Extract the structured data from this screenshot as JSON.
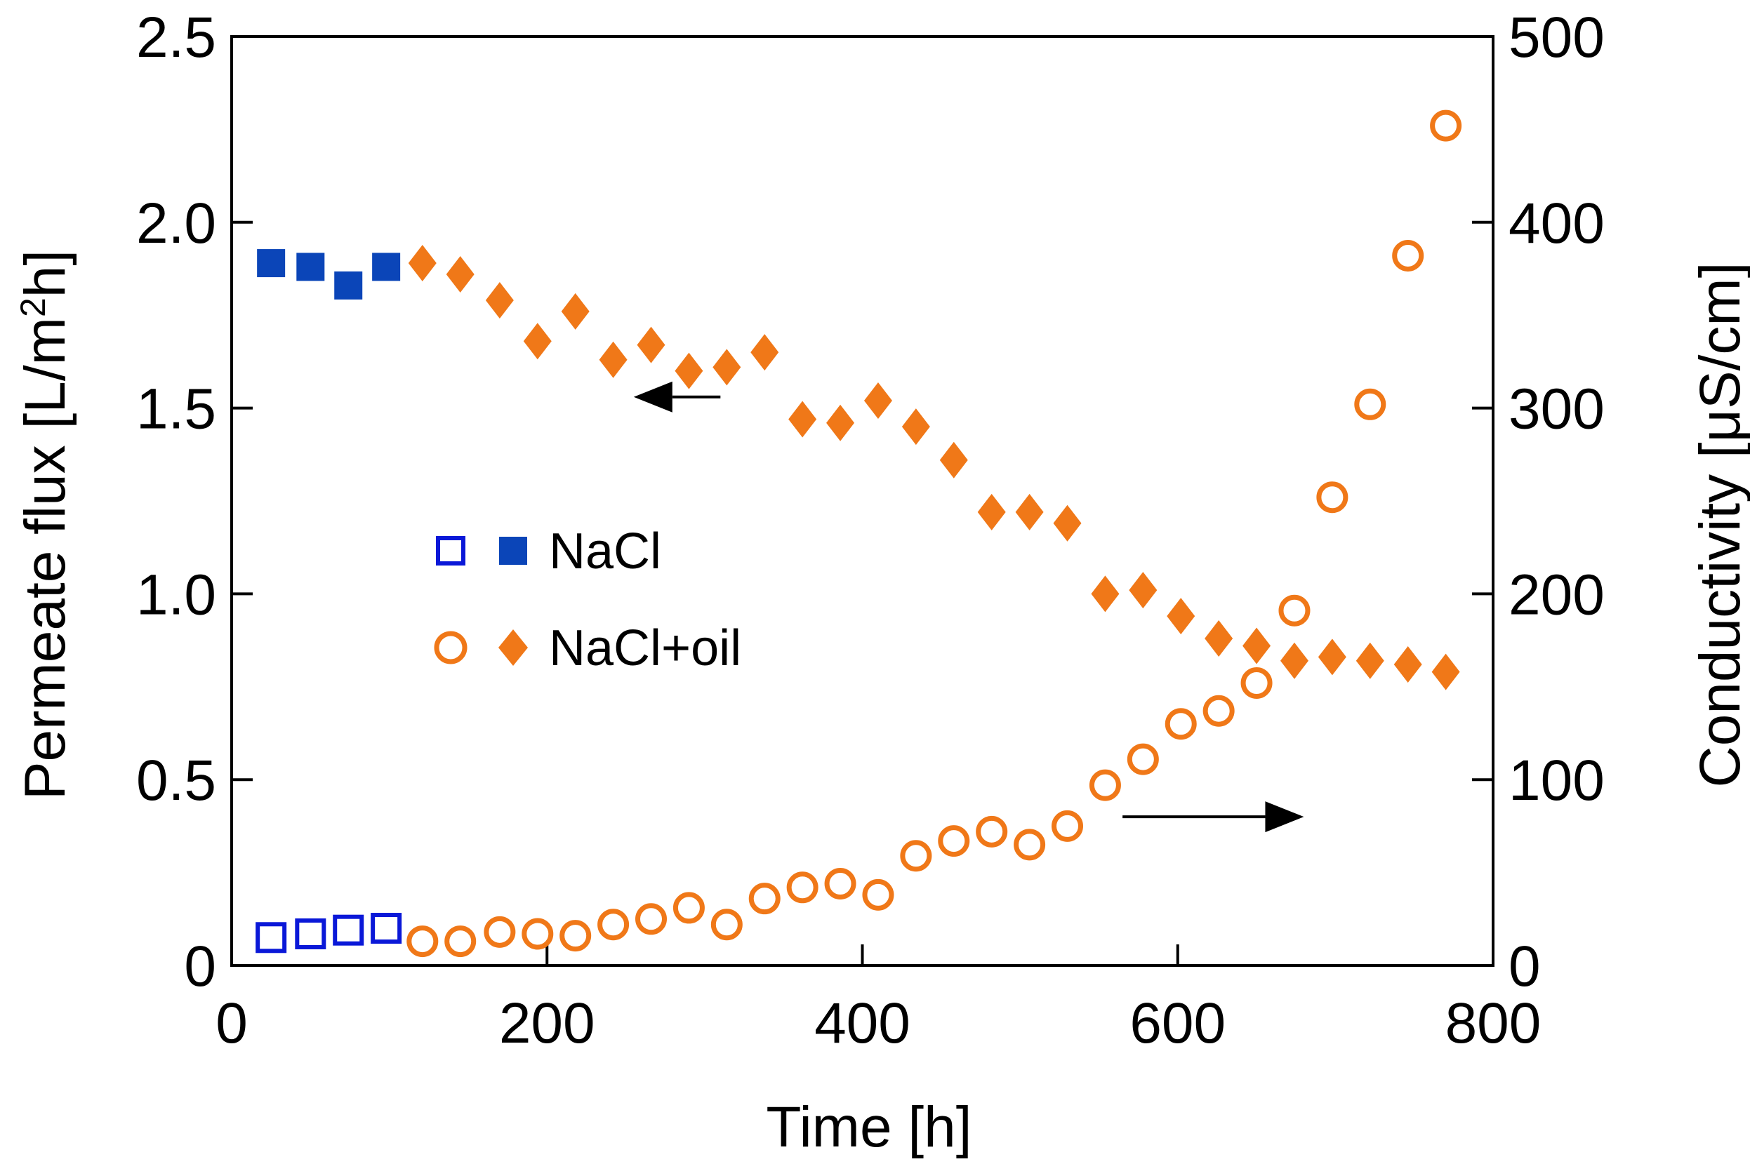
{
  "chart_data": {
    "type": "scatter",
    "xlabel": "Time [h]",
    "ylabel_left_pre": "Permeate flux [L/m",
    "ylabel_left_sup": "2",
    "ylabel_left_post": "h]",
    "ylabel_right": "Conductivity [μS/cm]",
    "xlim": [
      0,
      800
    ],
    "ylim_left": [
      0,
      2.5
    ],
    "ylim_right": [
      0,
      500
    ],
    "x_ticks": [
      "0",
      "200",
      "400",
      "600",
      "800"
    ],
    "y_left_ticks": [
      "0",
      "0.5",
      "1.0",
      "1.5",
      "2.0",
      "2.5"
    ],
    "y_right_ticks": [
      "0",
      "100",
      "200",
      "300",
      "400",
      "500"
    ],
    "legend": [
      {
        "label": "NaCl",
        "open_color": "#0a18d8",
        "filled_color": "#0b45b8"
      },
      {
        "label": "NaCl+oil",
        "open_color": "#f07818",
        "filled_color": "#f07818"
      }
    ],
    "annotations": {
      "arrow_left": {
        "points_to": "left axis (flux)",
        "from": [
          310,
          1.53
        ],
        "to": [
          255,
          1.53
        ]
      },
      "arrow_right": {
        "points_to": "right axis (conductivity)",
        "from": [
          565,
          80
        ],
        "to": [
          680,
          80
        ]
      }
    },
    "series": [
      {
        "name": "NaCl conductivity",
        "axis": "right",
        "marker": "open-square",
        "color": "#0a18d8",
        "x": [
          25,
          50,
          74,
          98
        ],
        "y": [
          15,
          17,
          19,
          20
        ]
      },
      {
        "name": "NaCl flux",
        "axis": "left",
        "marker": "filled-square",
        "color": "#0b45b8",
        "x": [
          25,
          50,
          74,
          98
        ],
        "y": [
          1.89,
          1.88,
          1.83,
          1.88
        ]
      },
      {
        "name": "NaCl+oil conductivity",
        "axis": "right",
        "marker": "open-circle",
        "color": "#f07818",
        "x": [
          121,
          145,
          170,
          194,
          218,
          242,
          266,
          290,
          314,
          338,
          362,
          386,
          410,
          434,
          458,
          482,
          506,
          530,
          554,
          578,
          602,
          626,
          650,
          674,
          698,
          722,
          746,
          770
        ],
        "y": [
          13,
          13,
          18,
          17,
          16,
          22,
          25,
          31,
          22,
          36,
          42,
          44,
          38,
          59,
          67,
          72,
          65,
          75,
          97,
          111,
          130,
          137,
          152,
          191,
          252,
          302,
          382,
          452
        ]
      },
      {
        "name": "NaCl+oil flux",
        "axis": "left",
        "marker": "filled-diamond",
        "color": "#f07818",
        "x": [
          121,
          145,
          170,
          194,
          218,
          242,
          266,
          290,
          314,
          338,
          362,
          386,
          410,
          434,
          458,
          482,
          506,
          530,
          554,
          578,
          602,
          626,
          650,
          674,
          698,
          722,
          746,
          770
        ],
        "y": [
          1.89,
          1.86,
          1.79,
          1.68,
          1.76,
          1.63,
          1.67,
          1.6,
          1.61,
          1.65,
          1.47,
          1.46,
          1.52,
          1.45,
          1.36,
          1.22,
          1.22,
          1.19,
          1.0,
          1.01,
          0.94,
          0.88,
          0.86,
          0.82,
          0.83,
          0.82,
          0.81,
          0.79
        ]
      }
    ]
  }
}
